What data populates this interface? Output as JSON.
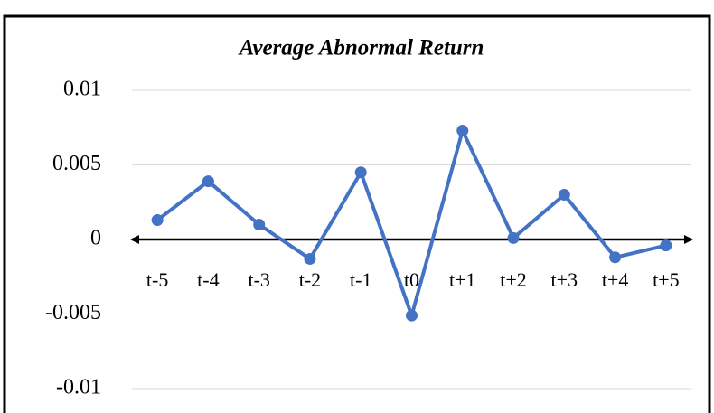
{
  "chart_data": {
    "type": "line",
    "title": "Average Abnormal Return",
    "categories": [
      "t-5",
      "t-4",
      "t-3",
      "t-2",
      "t-1",
      "t0",
      "t+1",
      "t+2",
      "t+3",
      "t+4",
      "t+5"
    ],
    "values": [
      0.0013,
      0.0039,
      0.001,
      -0.0013,
      0.0045,
      -0.0051,
      0.0073,
      0.0001,
      0.003,
      -0.0012,
      -0.0004
    ],
    "color": "#4472c4",
    "ylim": [
      -0.01,
      0.01
    ],
    "yticks": [
      -0.01,
      -0.005,
      0,
      0.005,
      0.01
    ],
    "grid": true
  }
}
